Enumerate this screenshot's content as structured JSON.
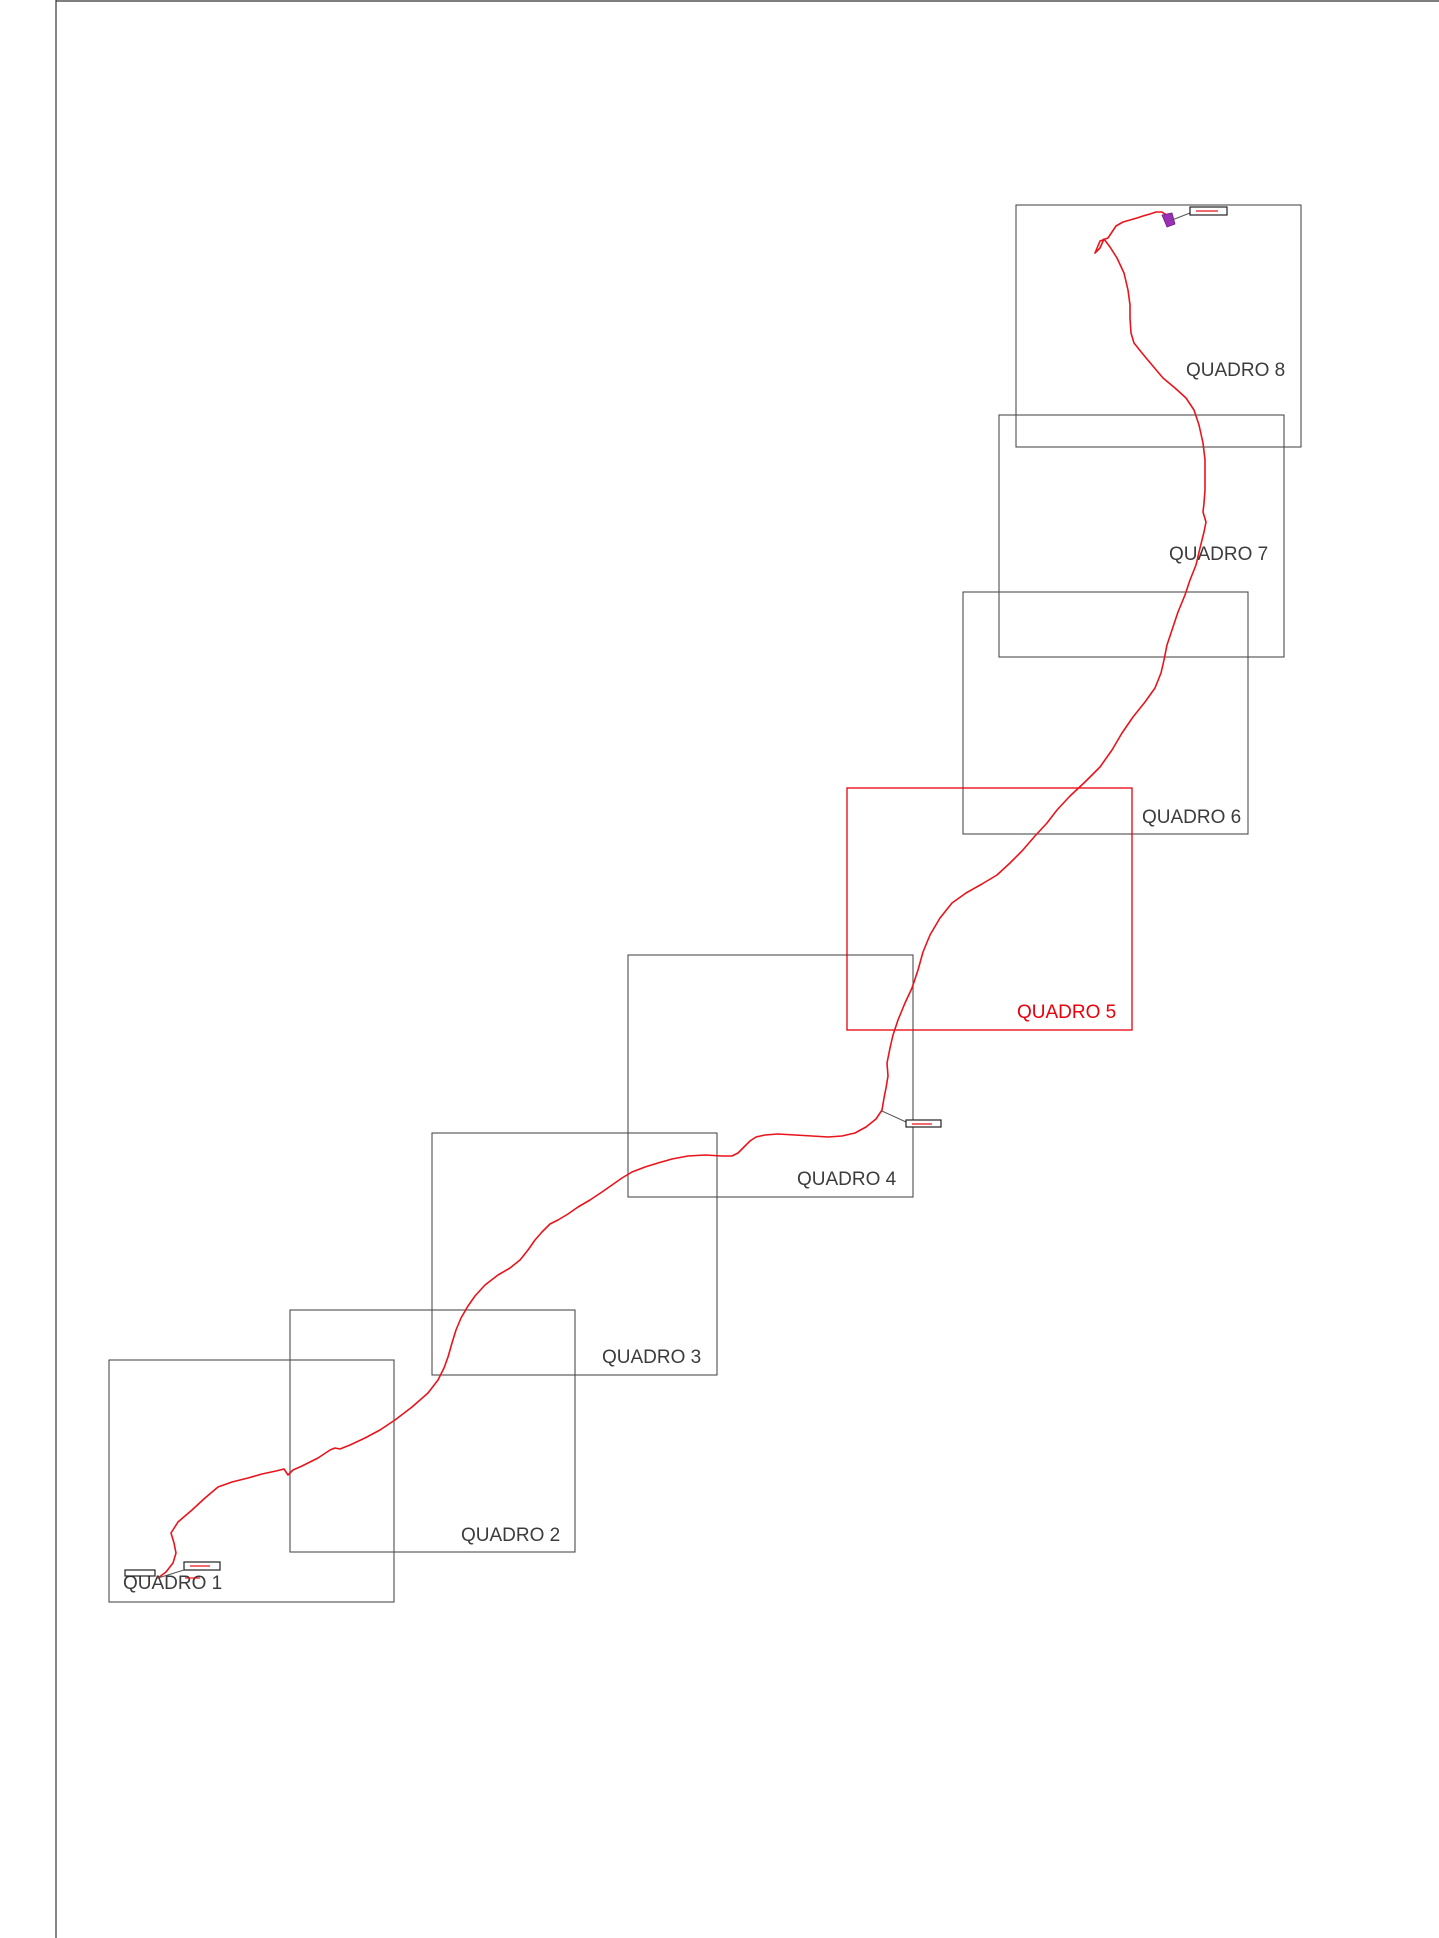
{
  "map": {
    "frames": [
      {
        "id": "q1",
        "label": "QUADRO 1",
        "active": false
      },
      {
        "id": "q2",
        "label": "QUADRO 2",
        "active": false
      },
      {
        "id": "q3",
        "label": "QUADRO 3",
        "active": false
      },
      {
        "id": "q4",
        "label": "QUADRO 4",
        "active": false
      },
      {
        "id": "q5",
        "label": "QUADRO 5",
        "active": true
      },
      {
        "id": "q6",
        "label": "QUADRO 6",
        "active": false
      },
      {
        "id": "q7",
        "label": "QUADRO 7",
        "active": false
      },
      {
        "id": "q8",
        "label": "QUADRO 8",
        "active": false
      }
    ],
    "colors": {
      "route": "#e8141c",
      "active_frame": "#e8000b",
      "frame": "#4d4d4d",
      "end_marker": "#9b2fb5"
    }
  }
}
